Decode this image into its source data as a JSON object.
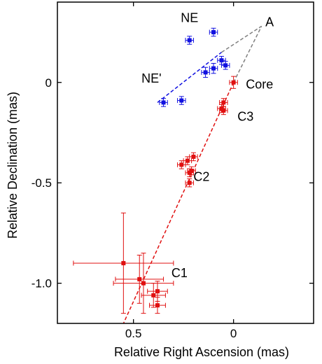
{
  "chart_data": {
    "type": "scatter",
    "title": "",
    "xlabel": "Relative Right Ascension (mas)",
    "ylabel": "Relative Declination (mas)",
    "xlim": [
      0.88,
      -0.4
    ],
    "ylim": [
      -1.2,
      0.4
    ],
    "x_reversed": true,
    "grid": false,
    "legend": "none",
    "xticks": [
      {
        "value": 0.5,
        "label": "0.5"
      },
      {
        "value": 0.0,
        "label": "0"
      }
    ],
    "yticks": [
      {
        "value": 0.0,
        "label": "0"
      },
      {
        "value": -0.5,
        "label": "-0.5"
      },
      {
        "value": -1.0,
        "label": "-1.0"
      }
    ],
    "series": [
      {
        "color": "#1010e0",
        "marker": "square",
        "points": [
          {
            "x": 0.22,
            "y": 0.21,
            "xerr": 0.02,
            "yerr": 0.02
          },
          {
            "x": 0.1,
            "y": 0.25,
            "xerr": 0.02,
            "yerr": 0.02
          },
          {
            "x": 0.06,
            "y": 0.11,
            "xerr": 0.02,
            "yerr": 0.02
          },
          {
            "x": 0.04,
            "y": 0.085,
            "xerr": 0.02,
            "yerr": 0.02
          },
          {
            "x": 0.1,
            "y": 0.07,
            "xerr": 0.02,
            "yerr": 0.025
          },
          {
            "x": 0.14,
            "y": 0.05,
            "xerr": 0.02,
            "yerr": 0.025
          },
          {
            "x": 0.26,
            "y": -0.09,
            "xerr": 0.02,
            "yerr": 0.02
          },
          {
            "x": 0.35,
            "y": -0.1,
            "xerr": 0.02,
            "yerr": 0.02
          }
        ]
      },
      {
        "color": "#e01010",
        "marker": "square",
        "points": [
          {
            "x": 0.0,
            "y": 0.0,
            "xerr": 0.02,
            "yerr": 0.03
          },
          {
            "x": 0.05,
            "y": -0.1,
            "xerr": 0.02,
            "yerr": 0.02
          },
          {
            "x": 0.06,
            "y": -0.13,
            "xerr": 0.02,
            "yerr": 0.02
          },
          {
            "x": 0.05,
            "y": -0.14,
            "xerr": 0.02,
            "yerr": 0.02
          },
          {
            "x": 0.2,
            "y": -0.37,
            "xerr": 0.02,
            "yerr": 0.02
          },
          {
            "x": 0.23,
            "y": -0.39,
            "xerr": 0.02,
            "yerr": 0.02
          },
          {
            "x": 0.26,
            "y": -0.41,
            "xerr": 0.02,
            "yerr": 0.02
          },
          {
            "x": 0.21,
            "y": -0.44,
            "xerr": 0.02,
            "yerr": 0.02
          },
          {
            "x": 0.22,
            "y": -0.45,
            "xerr": 0.02,
            "yerr": 0.02
          },
          {
            "x": 0.22,
            "y": -0.5,
            "xerr": 0.02,
            "yerr": 0.02
          },
          {
            "x": 0.55,
            "y": -0.9,
            "xerr": 0.25,
            "yerr": 0.25
          },
          {
            "x": 0.47,
            "y": -0.98,
            "xerr": 0.12,
            "yerr": 0.12
          },
          {
            "x": 0.45,
            "y": -1.0,
            "xerr": 0.15,
            "yerr": 0.15
          },
          {
            "x": 0.38,
            "y": -1.04,
            "xerr": 0.05,
            "yerr": 0.05
          },
          {
            "x": 0.4,
            "y": -1.06,
            "xerr": 0.06,
            "yerr": 0.06
          },
          {
            "x": 0.38,
            "y": -1.11,
            "xerr": 0.04,
            "yerr": 0.04
          }
        ]
      }
    ],
    "lines": [
      {
        "color": "#1010e0",
        "style": "dashed",
        "from": [
          0.38,
          -0.1
        ],
        "to": [
          0.06,
          0.15
        ]
      },
      {
        "color": "#e01010",
        "style": "dashed",
        "from": [
          0.0,
          0.0
        ],
        "to": [
          0.55,
          -1.2
        ]
      },
      {
        "color": "#808080",
        "style": "dashed",
        "from": [
          0.06,
          0.15
        ],
        "to": [
          -0.14,
          0.28
        ]
      },
      {
        "color": "#808080",
        "style": "dashed",
        "from": [
          0.0,
          0.0
        ],
        "to": [
          -0.14,
          0.28
        ]
      }
    ],
    "annotations": [
      {
        "text": "NE",
        "x": 0.22,
        "y": 0.3
      },
      {
        "text": "A",
        "x": -0.18,
        "y": 0.28
      },
      {
        "text": "NE'",
        "x": 0.41,
        "y": 0.0
      },
      {
        "text": "Core",
        "x": -0.13,
        "y": -0.03
      },
      {
        "text": "C3",
        "x": -0.06,
        "y": -0.19
      },
      {
        "text": "C2",
        "x": 0.16,
        "y": -0.49
      },
      {
        "text": "C1",
        "x": 0.27,
        "y": -0.97
      }
    ]
  }
}
